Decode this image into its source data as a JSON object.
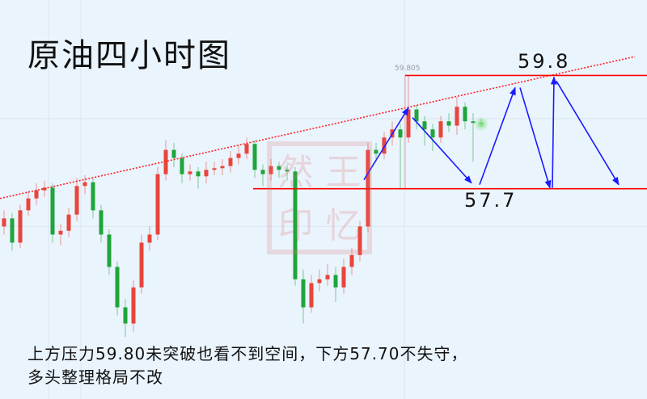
{
  "title": "原油四小时图",
  "note_lines": [
    "上方压力59.80未突破也看不到空间，下方57.70不失守，",
    "多头整理格局不改"
  ],
  "watermark": {
    "chars": [
      "然",
      "王",
      "印",
      "忆"
    ]
  },
  "colors": {
    "background": "#eaf4fd",
    "up": "#e8453c",
    "down": "#1fa53a",
    "level_line": "#ff0000",
    "arrows": "#1a1aff"
  },
  "chart_data": {
    "type": "candlestick",
    "title": "原油四小时图",
    "ylim": [
      53.8,
      61.2
    ],
    "xlim": [
      -0.5,
      79.5
    ],
    "grid": true,
    "high_label": "59.805",
    "ohlc": [
      [
        57.0,
        57.3,
        56.85,
        57.15
      ],
      [
        57.15,
        57.25,
        56.55,
        56.7
      ],
      [
        56.7,
        57.4,
        56.6,
        57.3
      ],
      [
        57.3,
        57.65,
        57.2,
        57.52
      ],
      [
        57.52,
        57.8,
        57.4,
        57.67
      ],
      [
        57.67,
        57.85,
        57.55,
        57.72
      ],
      [
        57.72,
        57.8,
        56.7,
        56.85
      ],
      [
        56.85,
        57.05,
        56.65,
        56.92
      ],
      [
        56.92,
        57.35,
        56.8,
        57.22
      ],
      [
        57.22,
        57.9,
        57.1,
        57.75
      ],
      [
        57.75,
        57.95,
        57.6,
        57.82
      ],
      [
        57.82,
        57.9,
        57.15,
        57.3
      ],
      [
        57.3,
        57.4,
        56.7,
        56.85
      ],
      [
        56.85,
        56.95,
        56.1,
        56.25
      ],
      [
        56.25,
        56.35,
        55.35,
        55.5
      ],
      [
        55.5,
        55.65,
        54.95,
        55.2
      ],
      [
        55.2,
        56.0,
        55.05,
        55.87
      ],
      [
        55.87,
        56.85,
        55.75,
        56.7
      ],
      [
        56.7,
        57.0,
        56.55,
        56.85
      ],
      [
        56.85,
        58.1,
        56.75,
        57.97
      ],
      [
        57.97,
        58.6,
        57.85,
        58.42
      ],
      [
        58.42,
        58.55,
        58.1,
        58.27
      ],
      [
        58.27,
        58.35,
        57.8,
        57.97
      ],
      [
        57.97,
        58.15,
        57.85,
        58.02
      ],
      [
        58.02,
        58.1,
        57.7,
        57.93
      ],
      [
        57.93,
        58.2,
        57.8,
        58.05
      ],
      [
        58.05,
        58.2,
        57.95,
        58.08
      ],
      [
        58.08,
        58.25,
        57.95,
        58.12
      ],
      [
        58.12,
        58.4,
        58.0,
        58.27
      ],
      [
        58.27,
        58.5,
        58.15,
        58.35
      ],
      [
        58.35,
        58.65,
        58.25,
        58.53
      ],
      [
        58.53,
        58.6,
        57.9,
        58.05
      ],
      [
        58.05,
        58.15,
        57.75,
        57.97
      ],
      [
        57.97,
        58.25,
        57.85,
        58.12
      ],
      [
        58.12,
        58.2,
        57.9,
        58.05
      ],
      [
        58.05,
        58.15,
        57.85,
        58.02
      ],
      [
        58.02,
        58.1,
        55.9,
        56.02
      ],
      [
        56.02,
        56.2,
        55.2,
        55.5
      ],
      [
        55.5,
        56.1,
        55.4,
        55.95
      ],
      [
        55.95,
        56.2,
        55.8,
        56.02
      ],
      [
        56.02,
        56.3,
        55.9,
        56.1
      ],
      [
        56.1,
        56.25,
        55.6,
        55.87
      ],
      [
        55.87,
        56.4,
        55.75,
        56.25
      ],
      [
        56.25,
        56.6,
        56.1,
        56.47
      ],
      [
        56.47,
        57.1,
        56.35,
        57.0
      ],
      [
        57.0,
        58.55,
        56.9,
        58.42
      ],
      [
        58.42,
        58.55,
        58.2,
        58.35
      ],
      [
        58.35,
        58.75,
        58.25,
        58.65
      ],
      [
        58.65,
        58.95,
        58.5,
        58.8
      ],
      [
        58.8,
        58.9,
        57.7,
        58.65
      ],
      [
        58.65,
        59.8,
        58.55,
        59.17
      ],
      [
        59.17,
        59.25,
        58.8,
        58.95
      ],
      [
        58.95,
        59.05,
        58.5,
        58.8
      ],
      [
        58.8,
        58.9,
        58.4,
        58.65
      ],
      [
        58.65,
        59.05,
        58.55,
        58.95
      ],
      [
        58.95,
        59.1,
        58.75,
        58.87
      ],
      [
        58.87,
        59.4,
        58.7,
        59.22
      ],
      [
        59.22,
        59.3,
        58.8,
        58.95
      ],
      [
        58.95,
        59.1,
        58.2,
        58.92
      ],
      [
        58.92,
        59.0,
        58.85,
        58.9
      ]
    ],
    "levels": [
      {
        "label": "59.8",
        "value": 59.8,
        "from_index": 49.6
      },
      {
        "label": "57.7",
        "value": 57.7,
        "from_index": 30.8
      }
    ],
    "trendline": {
      "style": "dotted",
      "points": [
        [
          -0.5,
          57.52
        ],
        [
          78,
          60.15
        ]
      ]
    },
    "projection_arrows": [
      [
        [
          44.5,
          57.865
        ],
        [
          50,
          59.2
        ]
      ],
      [
        [
          50.5,
          59.02
        ],
        [
          57.8,
          57.805
        ]
      ],
      [
        [
          58.8,
          57.775
        ],
        [
          63.2,
          59.575
        ]
      ],
      [
        [
          63.8,
          59.575
        ],
        [
          67.5,
          57.715
        ]
      ],
      [
        [
          67.8,
          57.715
        ],
        [
          68,
          59.77
        ]
      ],
      [
        [
          68.3,
          59.695
        ],
        [
          76,
          57.775
        ]
      ]
    ]
  }
}
